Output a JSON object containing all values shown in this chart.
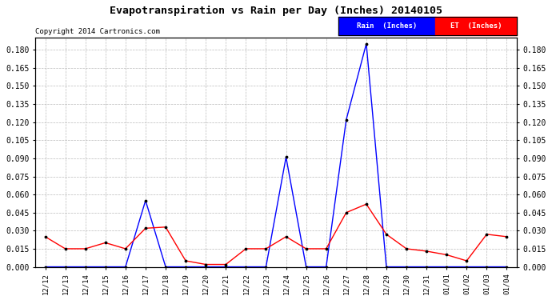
{
  "title": "Evapotranspiration vs Rain per Day (Inches) 20140105",
  "copyright": "Copyright 2014 Cartronics.com",
  "labels": [
    "12/12",
    "12/13",
    "12/14",
    "12/15",
    "12/16",
    "12/17",
    "12/18",
    "12/19",
    "12/20",
    "12/21",
    "12/22",
    "12/23",
    "12/24",
    "12/25",
    "12/26",
    "12/27",
    "12/28",
    "12/29",
    "12/30",
    "12/31",
    "01/01",
    "01/02",
    "01/03",
    "01/04"
  ],
  "rain": [
    0.0,
    0.0,
    0.0,
    0.0,
    0.0,
    0.055,
    0.0,
    0.0,
    0.0,
    0.0,
    0.0,
    0.0,
    0.091,
    0.0,
    0.0,
    0.122,
    0.185,
    0.0,
    0.0,
    0.0,
    0.0,
    0.0,
    0.0,
    0.0
  ],
  "et": [
    0.025,
    0.015,
    0.015,
    0.02,
    0.015,
    0.032,
    0.033,
    0.005,
    0.002,
    0.002,
    0.015,
    0.015,
    0.025,
    0.015,
    0.015,
    0.045,
    0.052,
    0.027,
    0.015,
    0.013,
    0.01,
    0.005,
    0.027,
    0.025
  ],
  "rain_color": "#0000ff",
  "et_color": "#ff0000",
  "bg_color": "#ffffff",
  "grid_color": "#aaaaaa",
  "ylim": [
    0.0,
    0.19
  ],
  "yticks": [
    0.0,
    0.015,
    0.03,
    0.045,
    0.06,
    0.075,
    0.09,
    0.105,
    0.12,
    0.135,
    0.15,
    0.165,
    0.18
  ],
  "legend_rain_text": "Rain  (Inches)",
  "legend_et_text": "ET  (Inches)",
  "legend_rain_bg": "#0000ff",
  "legend_et_bg": "#ff0000"
}
